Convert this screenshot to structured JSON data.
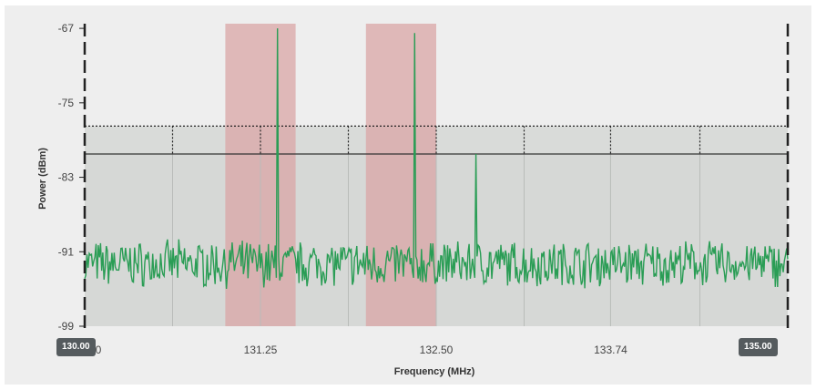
{
  "chart_data": {
    "type": "line",
    "xlabel": "Frequency (MHz)",
    "ylabel": "Power (dBm)",
    "xlim": [
      130.0,
      135.0
    ],
    "ylim": [
      -99,
      -66.5
    ],
    "x_ticks": [
      "130.00",
      "131.25",
      "132.50",
      "133.74"
    ],
    "y_ticks": [
      "-67",
      "-75",
      "-83",
      "-91",
      "-99"
    ],
    "range_start_label": "130.00",
    "range_end_label": "135.00",
    "highlight_bands": [
      [
        131.0,
        131.5
      ],
      [
        132.0,
        132.5
      ]
    ],
    "grid_divisions": [
      130.625,
      131.25,
      131.875,
      132.5,
      133.125,
      133.74,
      134.375
    ],
    "threshold_upper_dBm": -77.5,
    "threshold_line_dBm": -80.5,
    "noise_floor_dBm": -92.3,
    "peaks": [
      {
        "x": 131.37,
        "y": -67
      },
      {
        "x": 132.35,
        "y": -67.5
      },
      {
        "x": 132.78,
        "y": -80.5
      }
    ],
    "series_color": "#2a9d55",
    "band_color": "#d9a5a5"
  }
}
